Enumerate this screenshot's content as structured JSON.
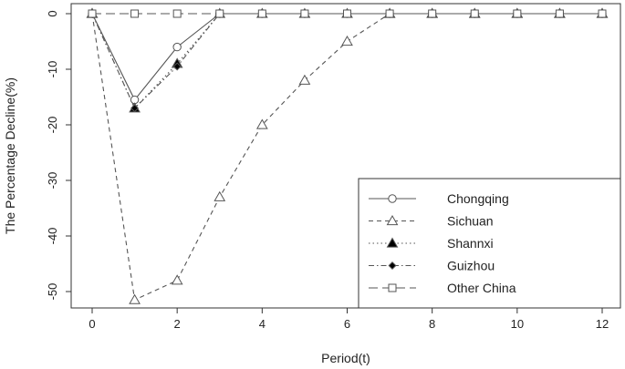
{
  "chart_data": {
    "type": "line",
    "title": "",
    "xlabel": "Period(t)",
    "ylabel": "The Percentage Decline(%)",
    "xlim": [
      0,
      12
    ],
    "ylim": [
      -52,
      0
    ],
    "x_ticks": [
      "0",
      "2",
      "4",
      "6",
      "8",
      "10",
      "12"
    ],
    "y_ticks": [
      "0",
      "-10",
      "-20",
      "-30",
      "-40",
      "-50"
    ],
    "x": [
      0,
      1,
      2,
      3,
      4,
      5,
      6,
      7,
      8,
      9,
      10,
      11,
      12
    ],
    "grid": false,
    "legend_position": "bottom-right",
    "series": [
      {
        "name": "Chongqing",
        "marker": "open-circle",
        "line_style": "solid",
        "values": [
          0,
          -15.5,
          -6,
          0,
          0,
          0,
          0,
          0,
          0,
          0,
          0,
          0,
          0
        ]
      },
      {
        "name": "Sichuan",
        "marker": "open-triangle",
        "line_style": "dashed",
        "values": [
          0,
          -51.5,
          -48,
          -33,
          -20,
          -12,
          -5,
          0,
          0,
          0,
          0,
          0,
          0
        ]
      },
      {
        "name": "Shannxi",
        "marker": "filled-triangle",
        "line_style": "dotted",
        "values": [
          0,
          -17,
          -9,
          0,
          0,
          0,
          0,
          0,
          0,
          0,
          0,
          0,
          0
        ]
      },
      {
        "name": "Guizhou",
        "marker": "filled-diamond",
        "line_style": "dash-dot",
        "values": [
          0,
          -17,
          -9.5,
          0,
          0,
          0,
          0,
          0,
          0,
          0,
          0,
          0,
          0
        ]
      },
      {
        "name": "Other China",
        "marker": "open-square",
        "line_style": "long-dash",
        "values": [
          0,
          0,
          0,
          0,
          0,
          0,
          0,
          0,
          0,
          0,
          0,
          0,
          0
        ]
      }
    ],
    "colors": {
      "line": "#555555",
      "axis": "#333333",
      "background": "#ffffff"
    }
  }
}
